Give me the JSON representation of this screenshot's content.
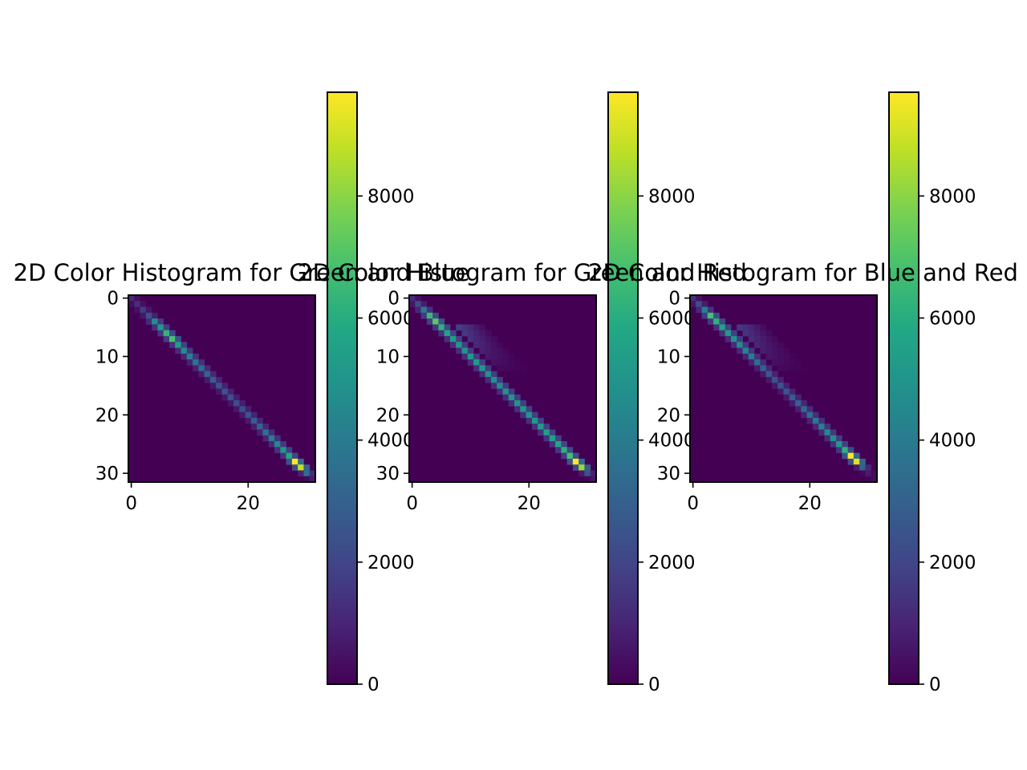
{
  "chart_data": [
    {
      "type": "heatmap",
      "title": "2D Color Histogram for Green and Blue",
      "colormap": "viridis",
      "grid": false,
      "x_ticks": [
        "0",
        "20"
      ],
      "y_ticks": [
        "0",
        "10",
        "20",
        "30"
      ],
      "bins": [
        32,
        32
      ],
      "colorbar": {
        "range": [
          0,
          9700
        ],
        "ticks": [
          "0",
          "2000",
          "4000",
          "6000",
          "8000"
        ]
      },
      "diagonal_peaks": [
        {
          "bin": 0,
          "value": 1100
        },
        {
          "bin": 1,
          "value": 1300
        },
        {
          "bin": 2,
          "value": 1700
        },
        {
          "bin": 3,
          "value": 2400
        },
        {
          "bin": 4,
          "value": 4700
        },
        {
          "bin": 5,
          "value": 5200
        },
        {
          "bin": 6,
          "value": 6300
        },
        {
          "bin": 7,
          "value": 6800
        },
        {
          "bin": 8,
          "value": 5400
        },
        {
          "bin": 9,
          "value": 4600
        },
        {
          "bin": 10,
          "value": 4100
        },
        {
          "bin": 11,
          "value": 3700
        },
        {
          "bin": 12,
          "value": 3400
        },
        {
          "bin": 13,
          "value": 3100
        },
        {
          "bin": 14,
          "value": 2800
        },
        {
          "bin": 15,
          "value": 2600
        },
        {
          "bin": 16,
          "value": 2500
        },
        {
          "bin": 17,
          "value": 2400
        },
        {
          "bin": 18,
          "value": 2300
        },
        {
          "bin": 19,
          "value": 2400
        },
        {
          "bin": 20,
          "value": 2600
        },
        {
          "bin": 21,
          "value": 2900
        },
        {
          "bin": 22,
          "value": 3200
        },
        {
          "bin": 23,
          "value": 3600
        },
        {
          "bin": 24,
          "value": 4000
        },
        {
          "bin": 25,
          "value": 4500
        },
        {
          "bin": 26,
          "value": 5200
        },
        {
          "bin": 27,
          "value": 5800
        },
        {
          "bin": 28,
          "value": 9700
        },
        {
          "bin": 29,
          "value": 8800
        },
        {
          "bin": 30,
          "value": 3500
        },
        {
          "bin": 31,
          "value": 800
        }
      ]
    },
    {
      "type": "heatmap",
      "title": "2D Color Histogram for Green and Red",
      "colormap": "viridis",
      "grid": false,
      "x_ticks": [
        "0",
        "20"
      ],
      "y_ticks": [
        "0",
        "10",
        "20",
        "30"
      ],
      "bins": [
        32,
        32
      ],
      "colorbar": {
        "range": [
          0,
          9700
        ],
        "ticks": [
          "0",
          "2000",
          "4000",
          "6000",
          "8000"
        ]
      },
      "diagonal_peaks": [
        {
          "bin": 0,
          "value": 1200
        },
        {
          "bin": 1,
          "value": 2200
        },
        {
          "bin": 2,
          "value": 4000
        },
        {
          "bin": 3,
          "value": 6500
        },
        {
          "bin": 4,
          "value": 7200
        },
        {
          "bin": 5,
          "value": 6200
        },
        {
          "bin": 6,
          "value": 5600
        },
        {
          "bin": 7,
          "value": 5300
        },
        {
          "bin": 8,
          "value": 5100
        },
        {
          "bin": 9,
          "value": 5000
        },
        {
          "bin": 10,
          "value": 5100
        },
        {
          "bin": 11,
          "value": 5200
        },
        {
          "bin": 12,
          "value": 5100
        },
        {
          "bin": 13,
          "value": 4900
        },
        {
          "bin": 14,
          "value": 4800
        },
        {
          "bin": 15,
          "value": 4800
        },
        {
          "bin": 16,
          "value": 4900
        },
        {
          "bin": 17,
          "value": 5000
        },
        {
          "bin": 18,
          "value": 5000
        },
        {
          "bin": 19,
          "value": 5100
        },
        {
          "bin": 20,
          "value": 5100
        },
        {
          "bin": 21,
          "value": 5200
        },
        {
          "bin": 22,
          "value": 5300
        },
        {
          "bin": 23,
          "value": 5400
        },
        {
          "bin": 24,
          "value": 5500
        },
        {
          "bin": 25,
          "value": 5700
        },
        {
          "bin": 26,
          "value": 6100
        },
        {
          "bin": 27,
          "value": 6800
        },
        {
          "bin": 28,
          "value": 9700
        },
        {
          "bin": 29,
          "value": 8200
        },
        {
          "bin": 30,
          "value": 2500
        },
        {
          "bin": 31,
          "value": 600
        }
      ],
      "off_diagonal_band": {
        "rows": [
          5,
          12
        ],
        "value_max": 1800
      }
    },
    {
      "type": "heatmap",
      "title": "2D Color Histogram for Blue and Red",
      "colormap": "viridis",
      "grid": false,
      "x_ticks": [
        "0",
        "20"
      ],
      "y_ticks": [
        "0",
        "10",
        "20",
        "30"
      ],
      "bins": [
        32,
        32
      ],
      "colorbar": {
        "range": [
          0,
          9700
        ],
        "ticks": [
          "0",
          "2000",
          "4000",
          "6000",
          "8000"
        ]
      },
      "diagonal_peaks": [
        {
          "bin": 0,
          "value": 1300
        },
        {
          "bin": 1,
          "value": 2300
        },
        {
          "bin": 2,
          "value": 4200
        },
        {
          "bin": 3,
          "value": 6800
        },
        {
          "bin": 4,
          "value": 6200
        },
        {
          "bin": 5,
          "value": 5600
        },
        {
          "bin": 6,
          "value": 5200
        },
        {
          "bin": 7,
          "value": 4900
        },
        {
          "bin": 8,
          "value": 4700
        },
        {
          "bin": 9,
          "value": 4400
        },
        {
          "bin": 10,
          "value": 4000
        },
        {
          "bin": 11,
          "value": 3500
        },
        {
          "bin": 12,
          "value": 3000
        },
        {
          "bin": 13,
          "value": 2700
        },
        {
          "bin": 14,
          "value": 2500
        },
        {
          "bin": 15,
          "value": 2500
        },
        {
          "bin": 16,
          "value": 2600
        },
        {
          "bin": 17,
          "value": 2800
        },
        {
          "bin": 18,
          "value": 3000
        },
        {
          "bin": 19,
          "value": 3300
        },
        {
          "bin": 20,
          "value": 3600
        },
        {
          "bin": 21,
          "value": 3900
        },
        {
          "bin": 22,
          "value": 4200
        },
        {
          "bin": 23,
          "value": 4500
        },
        {
          "bin": 24,
          "value": 4800
        },
        {
          "bin": 25,
          "value": 5200
        },
        {
          "bin": 26,
          "value": 6200
        },
        {
          "bin": 27,
          "value": 9700
        },
        {
          "bin": 28,
          "value": 9200
        },
        {
          "bin": 29,
          "value": 3000
        },
        {
          "bin": 30,
          "value": 700
        },
        {
          "bin": 31,
          "value": 300
        }
      ],
      "off_diagonal_band": {
        "rows": [
          5,
          12
        ],
        "value_max": 1600
      }
    }
  ]
}
